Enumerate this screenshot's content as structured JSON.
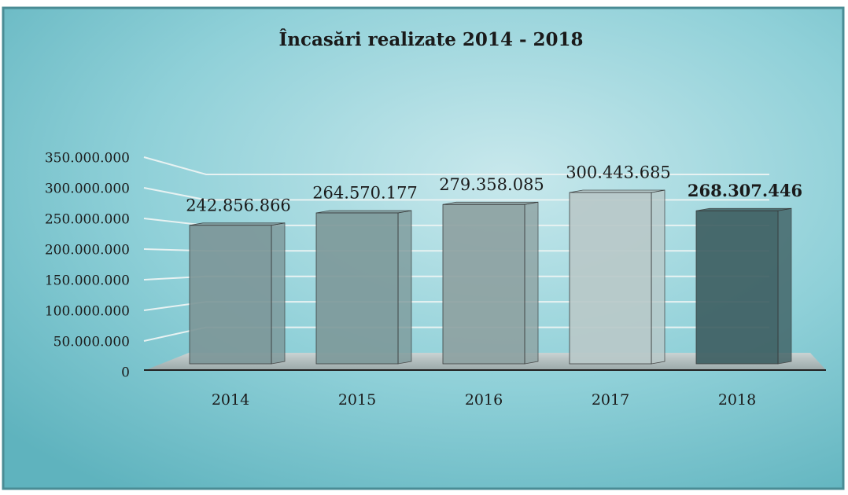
{
  "chart_data": {
    "type": "bar3d",
    "title": "Încasări realizate 2014 - 2018",
    "categories": [
      "2014",
      "2015",
      "2016",
      "2017",
      "2018"
    ],
    "values": [
      242856866,
      264570177,
      279358085,
      300443685,
      268307446
    ],
    "value_labels": [
      "242.856.866",
      "264.570.177",
      "279.358.085",
      "300.443.685",
      "268.307.446"
    ],
    "colors": [
      "#7d9799",
      "#7e9a9b",
      "#8ea2a2",
      "#b9c9c9",
      "#3f6063"
    ],
    "ylim": [
      0,
      350000000
    ],
    "yticks": [
      0,
      {
        "value": 50000000,
        "label": "50.000.000"
      },
      {
        "value": 100000000,
        "label": "100.000.000"
      },
      {
        "value": 150000000,
        "label": "150.000.000"
      },
      {
        "value": 200000000,
        "label": "200.000.000"
      },
      {
        "value": 250000000,
        "label": "250.000.000"
      },
      {
        "value": 300000000,
        "label": "300.000.000"
      },
      {
        "value": 350000000,
        "label": "350.000.000"
      }
    ],
    "grid": true
  }
}
